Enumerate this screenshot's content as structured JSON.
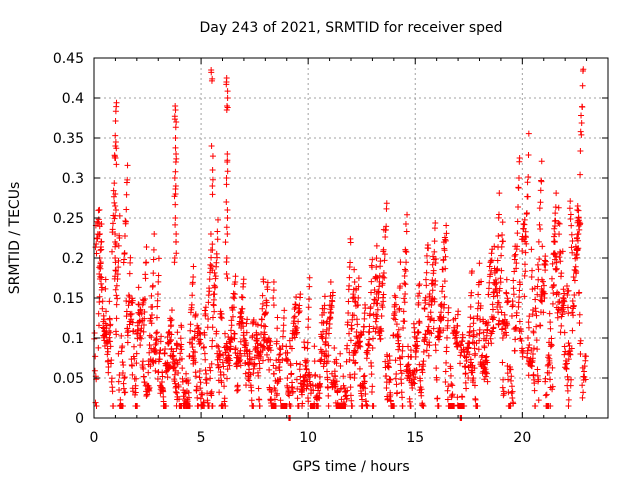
{
  "chart_data": {
    "type": "scatter",
    "title": "Day 243 of 2021, SRMTID for receiver sped",
    "xlabel": "GPS time / hours",
    "ylabel": "SRMTID / TECUs",
    "xlim": [
      0,
      24
    ],
    "ylim": [
      0,
      0.45
    ],
    "x_ticks": [
      0,
      5,
      10,
      15,
      20
    ],
    "x_tick_labels": [
      "0",
      "5",
      "10",
      "15",
      "20"
    ],
    "y_ticks": [
      0,
      0.05,
      0.1,
      0.15,
      0.2,
      0.25,
      0.3,
      0.35,
      0.4,
      0.45
    ],
    "y_tick_labels": [
      "0",
      "0.05",
      "0.1",
      "0.15",
      "0.2",
      "0.25",
      "0.3",
      "0.35",
      "0.4",
      "0.45"
    ],
    "grid": true,
    "marker": "+",
    "marker_color": "#ff0000",
    "point_count_approx": 2800,
    "data_span_hours": [
      0.0,
      22.9
    ],
    "profile_note": "baseline trend (hours, TECUs)",
    "baseline_trend": [
      [
        0.0,
        0.14
      ],
      [
        1.0,
        0.13
      ],
      [
        2.0,
        0.1
      ],
      [
        2.5,
        0.06
      ],
      [
        3.0,
        0.06
      ],
      [
        4.0,
        0.07
      ],
      [
        5.0,
        0.08
      ],
      [
        6.0,
        0.09
      ],
      [
        7.0,
        0.08
      ],
      [
        8.0,
        0.08
      ],
      [
        9.0,
        0.07
      ],
      [
        10.0,
        0.06
      ],
      [
        11.0,
        0.065
      ],
      [
        12.0,
        0.07
      ],
      [
        13.0,
        0.08
      ],
      [
        14.0,
        0.08
      ],
      [
        15.0,
        0.09
      ],
      [
        16.0,
        0.09
      ],
      [
        17.0,
        0.08
      ],
      [
        17.5,
        0.06
      ],
      [
        18.0,
        0.09
      ],
      [
        19.0,
        0.12
      ],
      [
        20.0,
        0.11
      ],
      [
        21.0,
        0.16
      ],
      [
        22.0,
        0.17
      ],
      [
        22.9,
        0.17
      ]
    ],
    "spike_clusters": [
      {
        "x": 1.0,
        "values": [
          0.345,
          0.34,
          0.325,
          0.28,
          0.265,
          0.26,
          0.23,
          0.22,
          0.2
        ]
      },
      {
        "x": 3.8,
        "values": [
          0.39,
          0.385,
          0.37,
          0.35,
          0.33,
          0.32,
          0.3,
          0.29,
          0.28,
          0.25,
          0.23,
          0.22,
          0.2
        ]
      },
      {
        "x": 5.5,
        "values": [
          0.435,
          0.432,
          0.34,
          0.31,
          0.29,
          0.23,
          0.21,
          0.19
        ]
      },
      {
        "x": 6.2,
        "values": [
          0.425,
          0.42,
          0.4,
          0.39,
          0.33,
          0.32,
          0.3,
          0.27,
          0.25,
          0.23,
          0.2,
          0.18
        ]
      },
      {
        "x": 0.3,
        "values": [
          0.23,
          0.22,
          0.2,
          0.19
        ]
      },
      {
        "x": 8.4,
        "values": [
          0.17,
          0.15
        ]
      },
      {
        "x": 12.2,
        "values": [
          0.17,
          0.16,
          0.15,
          0.14
        ]
      },
      {
        "x": 21.5,
        "values": [
          0.24,
          0.23,
          0.22
        ]
      },
      {
        "x": 22.6,
        "values": [
          0.265,
          0.26,
          0.25,
          0.24,
          0.23
        ]
      }
    ],
    "zero_points": [
      9.1,
      17.1
    ]
  }
}
